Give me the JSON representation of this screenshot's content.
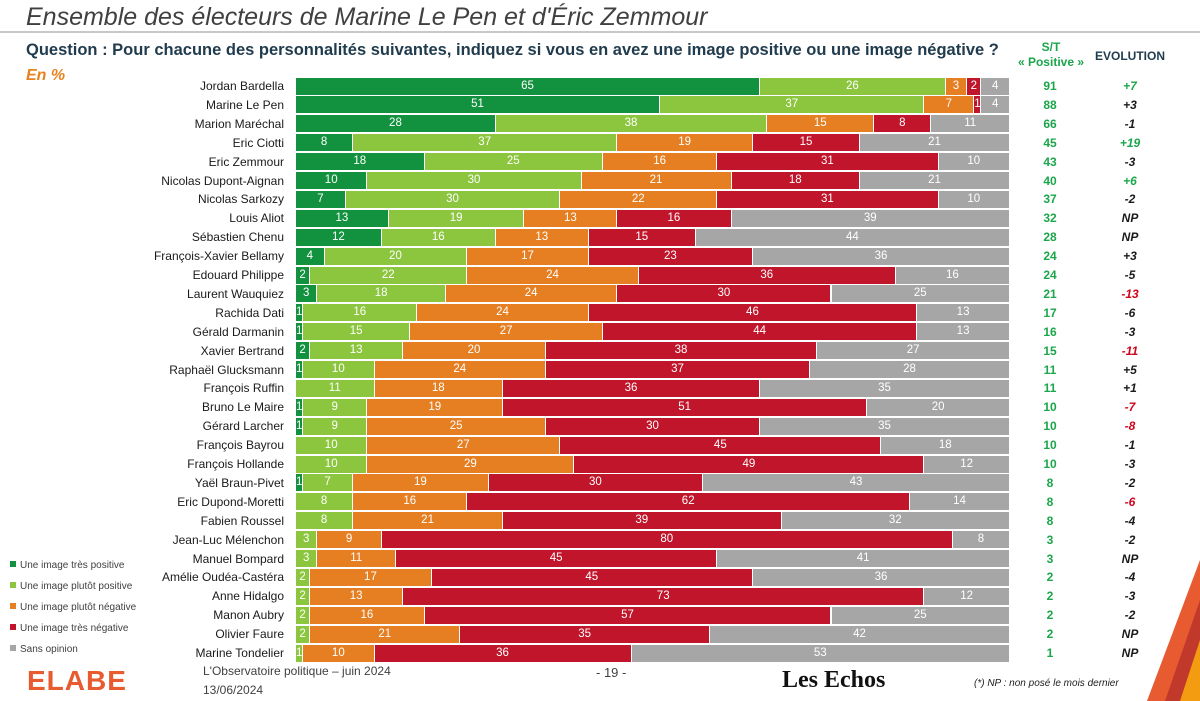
{
  "header": {
    "title": "Ensemble des électeurs de Marine Le Pen et d'Éric Zemmour",
    "question": "Question : Pour chacune des personnalités suivantes, indiquez si vous en avez une image positive ou une image négative ?",
    "unit": "En %",
    "col_st_line1": "S/T",
    "col_st_line2": "« Positive »",
    "col_evolution": "EVOLUTION"
  },
  "legend": [
    {
      "label": "Une image très positive",
      "color": "#12913e"
    },
    {
      "label": "Une image plutôt positive",
      "color": "#8cc63f"
    },
    {
      "label": "Une image plutôt négative",
      "color": "#e67e22"
    },
    {
      "label": "Une image très négative",
      "color": "#c0152a"
    },
    {
      "label": "Sans opinion",
      "color": "#a6a6a6"
    }
  ],
  "evolution_colors": {
    "positive": "#1aa64a",
    "negative": "#d0021b",
    "neutral": "#1a1a1a"
  },
  "chart_data": {
    "type": "bar",
    "stacked": true,
    "orientation": "horizontal",
    "title": "Ensemble des électeurs de Marine Le Pen et d'Éric Zemmour",
    "series_names": [
      "Une image très positive",
      "Une image plutôt positive",
      "Une image plutôt négative",
      "Une image très négative",
      "Sans opinion"
    ],
    "rows": [
      {
        "name": "Jordan Bardella",
        "values": [
          65,
          26,
          3,
          2,
          4
        ],
        "st": "91",
        "evo": "+7",
        "evo_tone": "positive"
      },
      {
        "name": "Marine Le Pen",
        "values": [
          51,
          37,
          7,
          1,
          4
        ],
        "st": "88",
        "evo": "+3",
        "evo_tone": "neutral"
      },
      {
        "name": "Marion Maréchal",
        "values": [
          28,
          38,
          15,
          8,
          11
        ],
        "st": "66",
        "evo": "-1",
        "evo_tone": "neutral"
      },
      {
        "name": "Eric Ciotti",
        "values": [
          8,
          37,
          19,
          15,
          21
        ],
        "st": "45",
        "evo": "+19",
        "evo_tone": "positive"
      },
      {
        "name": "Eric Zemmour",
        "values": [
          18,
          25,
          16,
          31,
          10
        ],
        "st": "43",
        "evo": "-3",
        "evo_tone": "neutral"
      },
      {
        "name": "Nicolas Dupont-Aignan",
        "values": [
          10,
          30,
          21,
          18,
          21
        ],
        "st": "40",
        "evo": "+6",
        "evo_tone": "positive"
      },
      {
        "name": "Nicolas Sarkozy",
        "values": [
          7,
          30,
          22,
          31,
          10
        ],
        "st": "37",
        "evo": "-2",
        "evo_tone": "neutral"
      },
      {
        "name": "Louis Aliot",
        "values": [
          13,
          19,
          13,
          16,
          39
        ],
        "st": "32",
        "evo": "NP",
        "evo_tone": "neutral"
      },
      {
        "name": "Sébastien Chenu",
        "values": [
          12,
          16,
          13,
          15,
          44
        ],
        "st": "28",
        "evo": "NP",
        "evo_tone": "neutral"
      },
      {
        "name": "François-Xavier Bellamy",
        "values": [
          4,
          20,
          17,
          23,
          36
        ],
        "st": "24",
        "evo": "+3",
        "evo_tone": "neutral"
      },
      {
        "name": "Edouard Philippe",
        "values": [
          2,
          22,
          24,
          36,
          16
        ],
        "st": "24",
        "evo": "-5",
        "evo_tone": "neutral"
      },
      {
        "name": "Laurent Wauquiez",
        "values": [
          3,
          18,
          24,
          30,
          25
        ],
        "st": "21",
        "evo": "-13",
        "evo_tone": "negative"
      },
      {
        "name": "Rachida Dati",
        "values": [
          1,
          16,
          24,
          46,
          13
        ],
        "st": "17",
        "evo": "-6",
        "evo_tone": "neutral"
      },
      {
        "name": "Gérald Darmanin",
        "values": [
          1,
          15,
          27,
          44,
          13
        ],
        "st": "16",
        "evo": "-3",
        "evo_tone": "neutral"
      },
      {
        "name": "Xavier Bertrand",
        "values": [
          2,
          13,
          20,
          38,
          27
        ],
        "st": "15",
        "evo": "-11",
        "evo_tone": "negative"
      },
      {
        "name": "Raphaël Glucksmann",
        "values": [
          1,
          10,
          24,
          37,
          28
        ],
        "st": "11",
        "evo": "+5",
        "evo_tone": "neutral"
      },
      {
        "name": "François Ruffin",
        "values": [
          0,
          11,
          18,
          36,
          35
        ],
        "st": "11",
        "evo": "+1",
        "evo_tone": "neutral"
      },
      {
        "name": "Bruno Le Maire",
        "values": [
          1,
          9,
          19,
          51,
          20
        ],
        "st": "10",
        "evo": "-7",
        "evo_tone": "negative"
      },
      {
        "name": "Gérard Larcher",
        "values": [
          1,
          9,
          25,
          30,
          35
        ],
        "st": "10",
        "evo": "-8",
        "evo_tone": "negative"
      },
      {
        "name": "François Bayrou",
        "values": [
          0,
          10,
          27,
          45,
          18
        ],
        "st": "10",
        "evo": "-1",
        "evo_tone": "neutral"
      },
      {
        "name": "François Hollande",
        "values": [
          0,
          10,
          29,
          49,
          12
        ],
        "st": "10",
        "evo": "-3",
        "evo_tone": "neutral"
      },
      {
        "name": "Yaël Braun-Pivet",
        "values": [
          1,
          7,
          19,
          30,
          43
        ],
        "st": "8",
        "evo": "-2",
        "evo_tone": "neutral"
      },
      {
        "name": "Eric Dupond-Moretti",
        "values": [
          0,
          8,
          16,
          62,
          14
        ],
        "st": "8",
        "evo": "-6",
        "evo_tone": "negative"
      },
      {
        "name": "Fabien Roussel",
        "values": [
          0,
          8,
          21,
          39,
          32
        ],
        "st": "8",
        "evo": "-4",
        "evo_tone": "neutral"
      },
      {
        "name": "Jean-Luc Mélenchon",
        "values": [
          0,
          3,
          9,
          80,
          8
        ],
        "st": "3",
        "evo": "-2",
        "evo_tone": "neutral"
      },
      {
        "name": "Manuel Bompard",
        "values": [
          0,
          3,
          11,
          45,
          41
        ],
        "st": "3",
        "evo": "NP",
        "evo_tone": "neutral"
      },
      {
        "name": "Amélie Oudéa-Castéra",
        "values": [
          0,
          2,
          17,
          45,
          36
        ],
        "st": "2",
        "evo": "-4",
        "evo_tone": "neutral"
      },
      {
        "name": "Anne Hidalgo",
        "values": [
          0,
          2,
          13,
          73,
          12
        ],
        "st": "2",
        "evo": "-3",
        "evo_tone": "neutral"
      },
      {
        "name": "Manon Aubry",
        "values": [
          0,
          2,
          16,
          57,
          25
        ],
        "st": "2",
        "evo": "-2",
        "evo_tone": "neutral"
      },
      {
        "name": "Olivier Faure",
        "values": [
          0,
          2,
          21,
          35,
          42
        ],
        "st": "2",
        "evo": "NP",
        "evo_tone": "neutral"
      },
      {
        "name": "Marine Tondelier",
        "values": [
          0,
          1,
          10,
          36,
          53
        ],
        "st": "1",
        "evo": "NP",
        "evo_tone": "neutral"
      }
    ]
  },
  "footer": {
    "logo": "ELABE",
    "observatoire": "L'Observatoire politique – juin 2024",
    "date": "13/06/2024",
    "page": "- 19 -",
    "publisher": "Les Echos",
    "note": "(*) NP : non posé le mois dernier"
  }
}
